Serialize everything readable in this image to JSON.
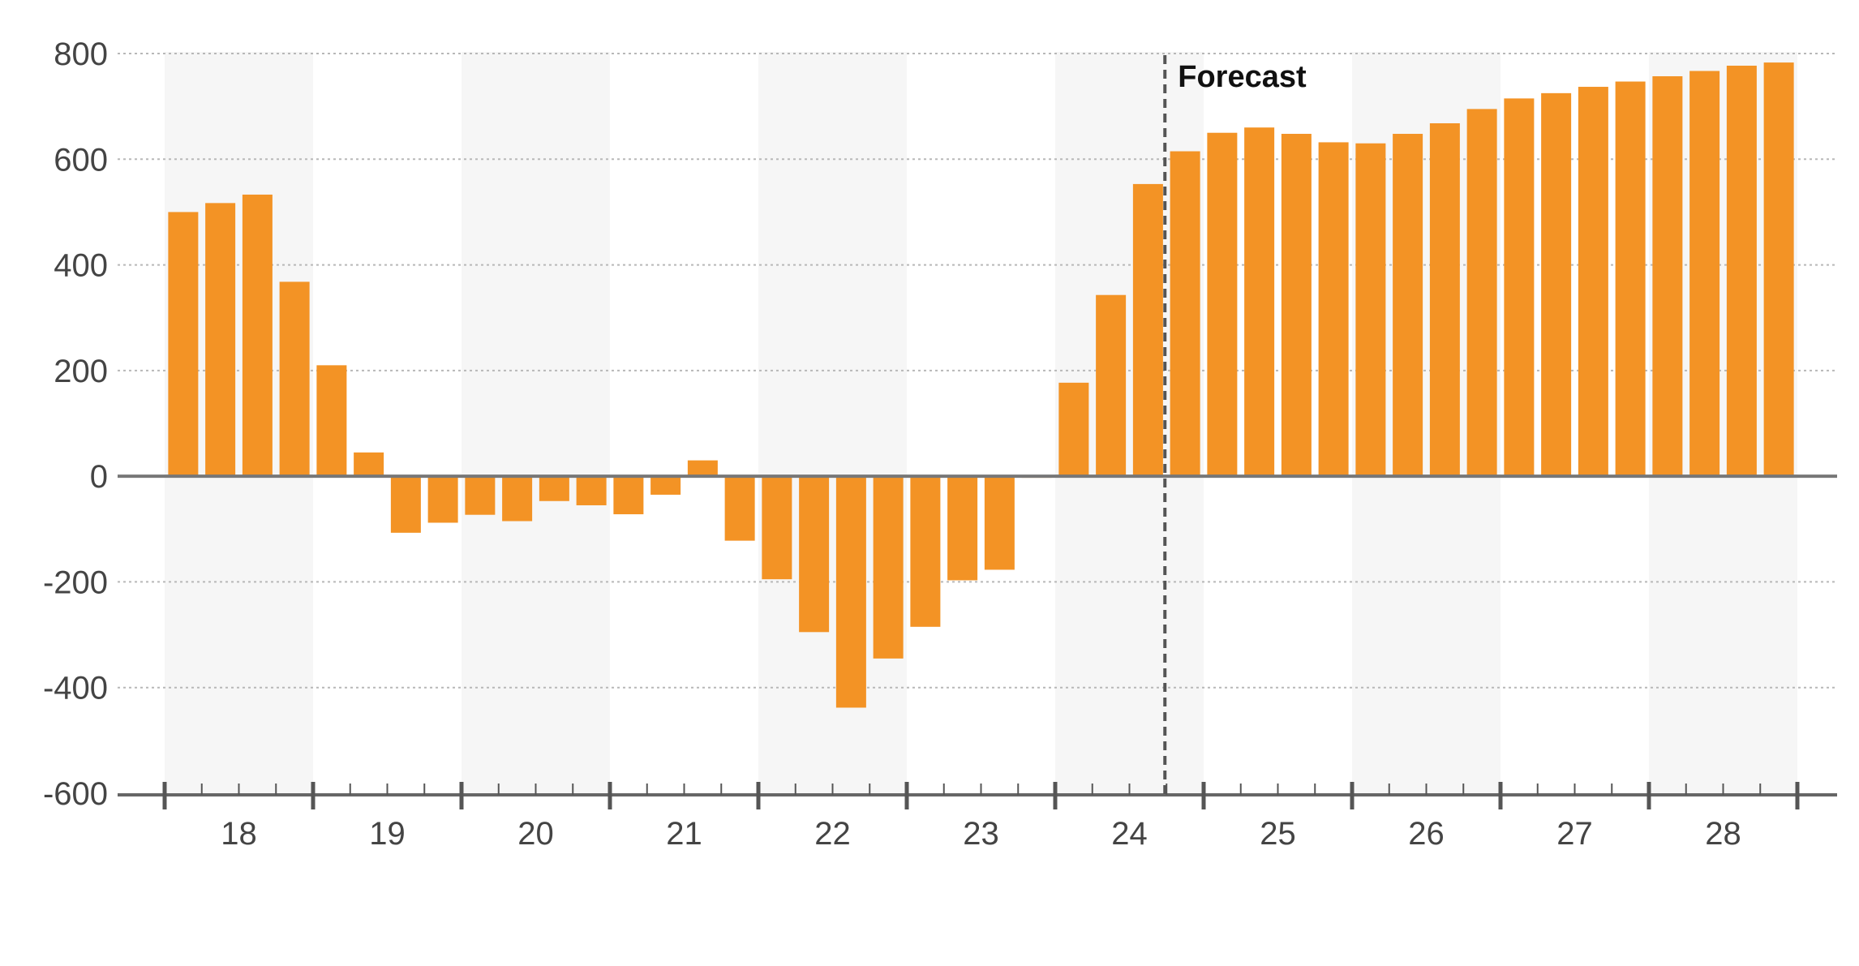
{
  "chart_data": {
    "type": "bar",
    "title": "",
    "xlabel": "",
    "ylabel": "",
    "ylim": [
      -600,
      800
    ],
    "yticks": [
      "800",
      "600",
      "400",
      "200",
      "0",
      "-200",
      "-400",
      "-600"
    ],
    "ytick_values": [
      800,
      600,
      400,
      200,
      0,
      -200,
      -400,
      -600
    ],
    "year_labels": [
      "18",
      "19",
      "20",
      "21",
      "22",
      "23",
      "24",
      "25",
      "26",
      "27",
      "28"
    ],
    "quarters_per_year": 4,
    "grid": true,
    "forecast_label": "Forecast",
    "forecast_starts_after_quarter_index": 27,
    "bar_color": "#f39325",
    "band_color": "#f6f6f6",
    "categories": [
      "18Q1",
      "18Q2",
      "18Q3",
      "18Q4",
      "19Q1",
      "19Q2",
      "19Q3",
      "19Q4",
      "20Q1",
      "20Q2",
      "20Q3",
      "20Q4",
      "21Q1",
      "21Q2",
      "21Q3",
      "21Q4",
      "22Q1",
      "22Q2",
      "22Q3",
      "22Q4",
      "23Q1",
      "23Q2",
      "23Q3",
      "23Q4",
      "24Q1",
      "24Q2",
      "24Q3",
      "24Q4",
      "25Q1",
      "25Q2",
      "25Q3",
      "25Q4",
      "26Q1",
      "26Q2",
      "26Q3",
      "26Q4",
      "27Q1",
      "27Q2",
      "27Q3",
      "27Q4",
      "28Q1",
      "28Q2",
      "28Q3",
      "28Q4"
    ],
    "values": [
      500,
      517,
      533,
      368,
      210,
      45,
      -107,
      -88,
      -73,
      -85,
      -47,
      -55,
      -72,
      -35,
      30,
      -122,
      -195,
      -295,
      -438,
      -345,
      -285,
      -197,
      -177,
      -3,
      177,
      343,
      553,
      615,
      650,
      660,
      648,
      632,
      630,
      648,
      668,
      695,
      715,
      725,
      737,
      747,
      757,
      767,
      777,
      783
    ]
  }
}
